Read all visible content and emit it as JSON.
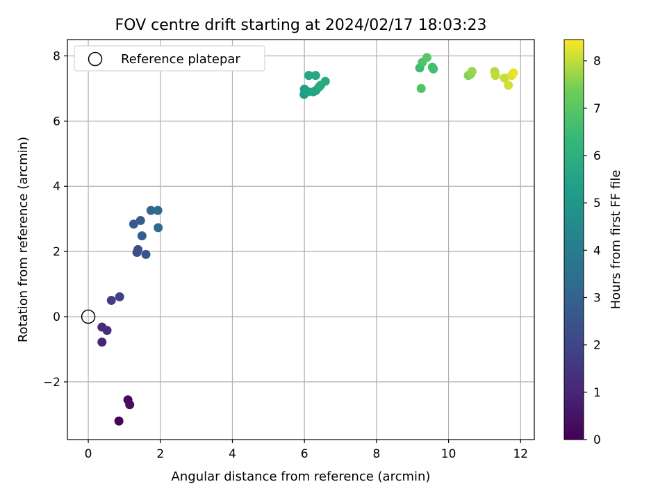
{
  "chart_data": {
    "type": "scatter",
    "title": "FOV centre drift starting at 2024/02/17 18:03:23",
    "xlabel": "Angular distance from reference (arcmin)",
    "ylabel": "Rotation from reference (arcmin)",
    "xlim": [
      -0.58,
      12.38
    ],
    "ylim": [
      -3.77,
      8.5
    ],
    "xticks": [
      0,
      2,
      4,
      6,
      8,
      10,
      12
    ],
    "yticks": [
      -2,
      0,
      2,
      4,
      6,
      8
    ],
    "grid": true,
    "legend": {
      "placement": "top-left",
      "entries": [
        "Reference platepar"
      ]
    },
    "reference_point": {
      "label": "Reference platepar",
      "x": 0,
      "y": 0,
      "marker": "open-circle"
    },
    "colorbar": {
      "label": "Hours from first FF file",
      "colormap": "viridis",
      "range": [
        0,
        8.45
      ],
      "ticks": [
        0,
        1,
        2,
        3,
        4,
        5,
        6,
        7,
        8
      ]
    },
    "series": [
      {
        "points": [
          {
            "x": 0.85,
            "y": -3.2,
            "c": 0.05
          },
          {
            "x": 1.1,
            "y": -2.55,
            "c": 0.3
          },
          {
            "x": 1.15,
            "y": -2.7,
            "c": 0.4
          },
          {
            "x": 0.38,
            "y": -0.78,
            "c": 1.0
          },
          {
            "x": 0.38,
            "y": -0.32,
            "c": 1.2
          },
          {
            "x": 0.52,
            "y": -0.42,
            "c": 1.3
          },
          {
            "x": 0.64,
            "y": 0.5,
            "c": 1.8
          },
          {
            "x": 0.87,
            "y": 0.61,
            "c": 1.9
          },
          {
            "x": 1.35,
            "y": 1.97,
            "c": 2.3
          },
          {
            "x": 1.38,
            "y": 2.06,
            "c": 2.35
          },
          {
            "x": 1.6,
            "y": 1.91,
            "c": 2.5
          },
          {
            "x": 1.26,
            "y": 2.84,
            "c": 2.7
          },
          {
            "x": 1.45,
            "y": 2.95,
            "c": 2.8
          },
          {
            "x": 1.49,
            "y": 2.48,
            "c": 2.85
          },
          {
            "x": 1.74,
            "y": 3.26,
            "c": 3.1
          },
          {
            "x": 1.93,
            "y": 3.26,
            "c": 3.2
          },
          {
            "x": 1.94,
            "y": 2.73,
            "c": 3.25
          },
          {
            "x": 5.99,
            "y": 6.82,
            "c": 5.1
          },
          {
            "x": 6.02,
            "y": 6.88,
            "c": 5.2
          },
          {
            "x": 6.0,
            "y": 6.98,
            "c": 5.3
          },
          {
            "x": 6.1,
            "y": 6.9,
            "c": 5.4
          },
          {
            "x": 6.25,
            "y": 6.9,
            "c": 5.5
          },
          {
            "x": 6.32,
            "y": 6.94,
            "c": 5.55
          },
          {
            "x": 6.4,
            "y": 7.04,
            "c": 5.6
          },
          {
            "x": 6.45,
            "y": 7.1,
            "c": 5.7
          },
          {
            "x": 6.58,
            "y": 7.22,
            "c": 5.8
          },
          {
            "x": 6.12,
            "y": 7.4,
            "c": 5.6
          },
          {
            "x": 6.31,
            "y": 7.4,
            "c": 5.65
          },
          {
            "x": 9.2,
            "y": 7.63,
            "c": 6.5
          },
          {
            "x": 9.27,
            "y": 7.8,
            "c": 6.8
          },
          {
            "x": 9.4,
            "y": 7.95,
            "c": 7.0
          },
          {
            "x": 9.55,
            "y": 7.65,
            "c": 6.6
          },
          {
            "x": 9.58,
            "y": 7.6,
            "c": 6.65
          },
          {
            "x": 9.24,
            "y": 7.0,
            "c": 6.9
          },
          {
            "x": 10.55,
            "y": 7.4,
            "c": 7.5
          },
          {
            "x": 10.62,
            "y": 7.45,
            "c": 7.6
          },
          {
            "x": 10.65,
            "y": 7.52,
            "c": 7.7
          },
          {
            "x": 11.28,
            "y": 7.52,
            "c": 7.9
          },
          {
            "x": 11.3,
            "y": 7.4,
            "c": 8.0
          },
          {
            "x": 11.55,
            "y": 7.32,
            "c": 8.05
          },
          {
            "x": 11.66,
            "y": 7.1,
            "c": 8.1
          },
          {
            "x": 11.75,
            "y": 7.4,
            "c": 8.2
          },
          {
            "x": 11.8,
            "y": 7.48,
            "c": 8.3
          }
        ]
      }
    ]
  }
}
